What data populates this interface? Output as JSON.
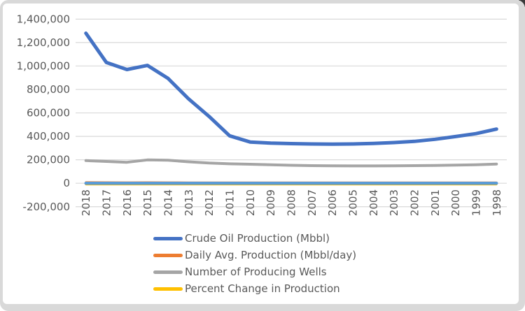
{
  "chart_data": {
    "type": "line",
    "title": "",
    "xlabel": "",
    "ylabel": "",
    "categories": [
      "2018",
      "2017",
      "2016",
      "2015",
      "2014",
      "2013",
      "2012",
      "2011",
      "2010",
      "2009",
      "2008",
      "2007",
      "2006",
      "2005",
      "2004",
      "2003",
      "2002",
      "2001",
      "2000",
      "1999",
      "1998"
    ],
    "series": [
      {
        "name": "Crude Oil Production (Mbbl)",
        "color": "#4472C4",
        "values": [
          1280000,
          1030000,
          970000,
          1005000,
          895000,
          720000,
          570000,
          405000,
          352000,
          342000,
          338000,
          335000,
          334000,
          335000,
          340000,
          347000,
          357000,
          375000,
          398000,
          423000,
          462000
        ]
      },
      {
        "name": "Daily Avg. Production (Mbbl/day)",
        "color": "#ED7D31",
        "values": [
          3507,
          2822,
          2658,
          2753,
          2452,
          1973,
          1562,
          1110,
          964,
          937,
          926,
          918,
          915,
          918,
          932,
          951,
          978,
          1027,
          1090,
          1159,
          1266
        ]
      },
      {
        "name": "Number of Producing Wells",
        "color": "#A5A5A5",
        "values": [
          193000,
          186000,
          179000,
          199000,
          196000,
          183000,
          172000,
          166000,
          162000,
          158000,
          153000,
          150000,
          149000,
          148000,
          148000,
          149000,
          150000,
          152000,
          155000,
          158000,
          164000
        ]
      },
      {
        "name": "Percent Change in Production",
        "color": "#FFC000",
        "values": [
          24.3,
          6.2,
          -3.5,
          12.3,
          24.3,
          26.3,
          40.7,
          15.1,
          2.9,
          1.2,
          0.9,
          0.3,
          -0.3,
          -1.5,
          -2.0,
          -2.8,
          -4.8,
          -5.8,
          -5.9,
          -8.4,
          0
        ]
      },
      {
        "name": "",
        "color": "#5B9BD5",
        "values": [
          0,
          0,
          0,
          0,
          0,
          0,
          0,
          0,
          0,
          0,
          0,
          0,
          0,
          0,
          0,
          0,
          0,
          0,
          0,
          0,
          0
        ],
        "note": "unlabeled flat line drawn along the zero baseline"
      }
    ],
    "y_axis": {
      "min": -200000,
      "max": 1400000,
      "step": 200000,
      "tick_labels": [
        "1,400,000",
        "1,200,000",
        "1,000,000",
        "800,000",
        "600,000",
        "400,000",
        "200,000",
        "0",
        "-200,000"
      ]
    },
    "x_axis": {
      "label_rotation_deg": -90
    },
    "grid": true,
    "legend": {
      "position": "bottom",
      "entries": [
        "Crude Oil Production (Mbbl)",
        "Daily Avg. Production (Mbbl/day)",
        "Number of Producing Wells",
        "Percent Change in Production"
      ]
    }
  },
  "colors": {
    "plot_background": "#FFFFFF",
    "frame": "#D9D9D9",
    "gridline": "#D9D9D9",
    "axis_label": "#595959",
    "legend_text": "#595959"
  }
}
